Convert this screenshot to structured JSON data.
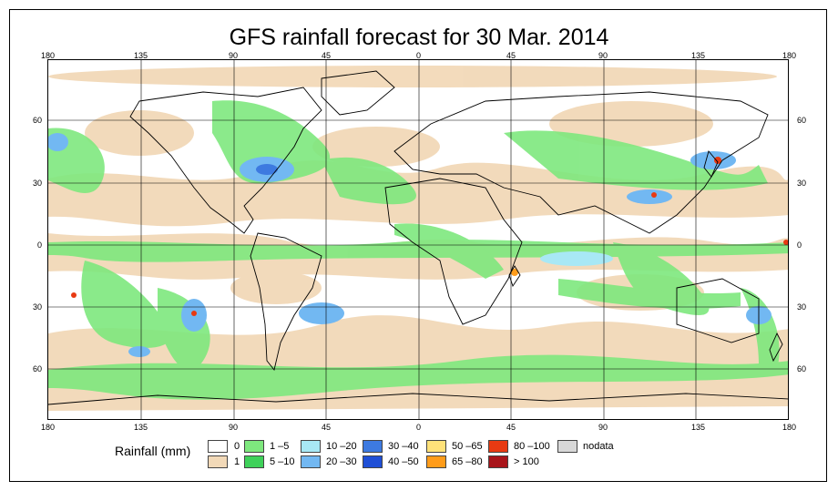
{
  "title": "GFS rainfall forecast for 30 Mar. 2014",
  "axes": {
    "longitude_ticks": [
      "180",
      "135",
      "90",
      "45",
      "0",
      "45",
      "90",
      "135",
      "180"
    ],
    "latitude_ticks": [
      "60",
      "30",
      "0",
      "30",
      "60"
    ]
  },
  "legend": {
    "title": "Rainfall (mm)",
    "items": [
      {
        "label": "0",
        "color": "#ffffff"
      },
      {
        "label": "1",
        "color": "#f2d9b8"
      },
      {
        "label": "1 –5",
        "color": "#7ee87e"
      },
      {
        "label": "5 –10",
        "color": "#3fd15a"
      },
      {
        "label": "10 –20",
        "color": "#a8e8f5"
      },
      {
        "label": "20 –30",
        "color": "#72b8f2"
      },
      {
        "label": "30 –40",
        "color": "#3d7ae0"
      },
      {
        "label": "40 –50",
        "color": "#1f4fd6"
      },
      {
        "label": "50 –65",
        "color": "#ffe27a"
      },
      {
        "label": "65 –80",
        "color": "#ff9c1a"
      },
      {
        "label": "80 –100",
        "color": "#e83a12"
      },
      {
        "label": "> 100",
        "color": "#a8141a"
      },
      {
        "label": "nodata",
        "color": "#d8d8d8"
      }
    ]
  }
}
